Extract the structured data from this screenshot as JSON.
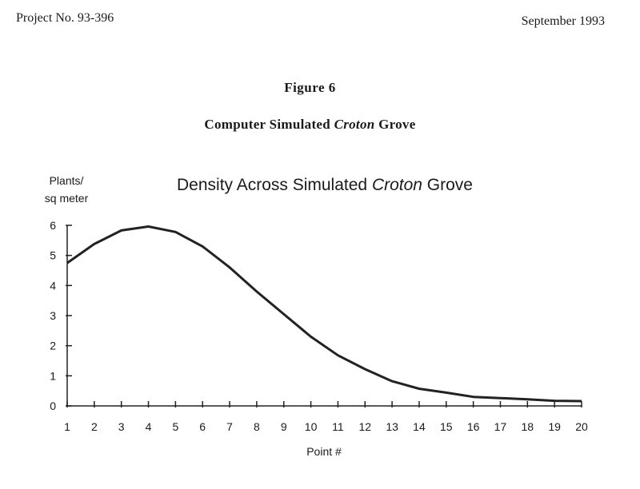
{
  "header": {
    "project": "Project No. 93-396",
    "date": "September 1993"
  },
  "figure": {
    "number": "Figure 6",
    "caption_prefix": "Computer Simulated ",
    "caption_italic": "Croton",
    "caption_suffix": " Grove"
  },
  "chart_data": {
    "type": "line",
    "title_prefix": "Density Across Simulated ",
    "title_italic": "Croton",
    "title_suffix": " Grove",
    "ylabel_line1": "Plants/",
    "ylabel_line2": "sq meter",
    "xlabel": "Point #",
    "x": [
      1,
      2,
      3,
      4,
      5,
      6,
      7,
      8,
      9,
      10,
      11,
      12,
      13,
      14,
      15,
      16,
      17,
      18,
      19,
      20
    ],
    "y": [
      4.75,
      5.38,
      5.83,
      5.96,
      5.78,
      5.3,
      4.6,
      3.8,
      3.05,
      2.3,
      1.68,
      1.22,
      0.82,
      0.57,
      0.44,
      0.3,
      0.26,
      0.22,
      0.17,
      0.16
    ],
    "ylim": [
      0,
      6
    ],
    "yticks": [
      0,
      1,
      2,
      3,
      4,
      5,
      6
    ],
    "xlim": [
      1,
      20
    ],
    "grid": false,
    "line_color": "#222222"
  }
}
